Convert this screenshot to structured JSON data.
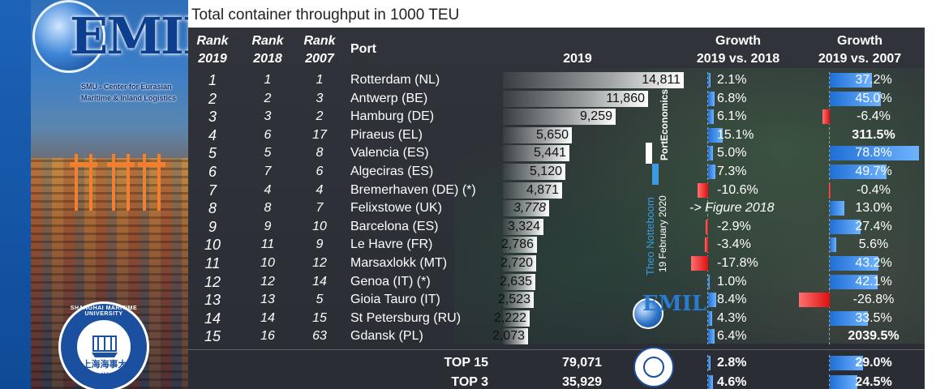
{
  "title": "Total container throughput in 1000 TEU",
  "logo": {
    "emil_text": "EMIL",
    "subtitle_lines": [
      "SMU - Center for Eurasian",
      "Maritime & Inland Logistics"
    ]
  },
  "smu": {
    "ring_text": "SHANGHAI MARITIME UNIVERSITY",
    "chinese_name": "上海海事大学"
  },
  "headers": {
    "rank2019": [
      "Rank",
      "2019"
    ],
    "rank2018": [
      "Rank",
      "2018"
    ],
    "rank2007": [
      "Rank",
      "2007"
    ],
    "port": "Port",
    "y2019": "2019",
    "growth18": [
      "Growth",
      "2019 vs. 2018"
    ],
    "growth07": [
      "Growth",
      "2019 vs. 2007"
    ]
  },
  "watermark": {
    "author": "Theo Notteboom",
    "date": "19 February 2020",
    "brand_a": "Port",
    "brand_b": "Economics"
  },
  "figure_note": "-> Figure 2018",
  "chart_data": {
    "type": "table",
    "title": "Total container throughput in 1000 TEU",
    "unit": "1000 TEU",
    "rows": [
      {
        "rank2019": "1",
        "rank2018": "1",
        "rank2007": "1",
        "port": "Rotterdam (NL)",
        "teu2019": 14811,
        "teu_label": "14,811",
        "g18": 2.1,
        "g18_label": "2.1%",
        "g07": 37.2,
        "g07_label": "37.2%"
      },
      {
        "rank2019": "2",
        "rank2018": "2",
        "rank2007": "3",
        "port": "Antwerp (BE)",
        "teu2019": 11860,
        "teu_label": "11,860",
        "g18": 6.8,
        "g18_label": "6.8%",
        "g07": 45.0,
        "g07_label": "45.0%"
      },
      {
        "rank2019": "3",
        "rank2018": "3",
        "rank2007": "2",
        "port": "Hamburg (DE)",
        "teu2019": 9259,
        "teu_label": "9,259",
        "g18": 6.1,
        "g18_label": "6.1%",
        "g07": -6.4,
        "g07_label": "-6.4%"
      },
      {
        "rank2019": "4",
        "rank2018": "6",
        "rank2007": "17",
        "port": "Piraeus (EL)",
        "teu2019": 5650,
        "teu_label": "5,650",
        "g18": 15.1,
        "g18_label": "15.1%",
        "g07": 311.5,
        "g07_label": "311.5%",
        "g07_bold": true
      },
      {
        "rank2019": "5",
        "rank2018": "5",
        "rank2007": "8",
        "port": "Valencia (ES)",
        "teu2019": 5441,
        "teu_label": "5,441",
        "g18": 5.0,
        "g18_label": "5.0%",
        "g07": 78.8,
        "g07_label": "78.8%"
      },
      {
        "rank2019": "6",
        "rank2018": "7",
        "rank2007": "6",
        "port": "Algeciras (ES)",
        "teu2019": 5120,
        "teu_label": "5,120",
        "g18": 7.3,
        "g18_label": "7.3%",
        "g07": 49.7,
        "g07_label": "49.7%"
      },
      {
        "rank2019": "7",
        "rank2018": "4",
        "rank2007": "4",
        "port": "Bremerhaven (DE) (*)",
        "teu2019": 4871,
        "teu_label": "4,871",
        "g18": -10.6,
        "g18_label": "-10.6%",
        "g07": -0.4,
        "g07_label": "-0.4%"
      },
      {
        "rank2019": "8",
        "rank2018": "8",
        "rank2007": "7",
        "port": "Felixstowe (UK)",
        "teu2019": 3778,
        "teu_label": "3,778",
        "g18": null,
        "g18_label": "",
        "g07": 13.0,
        "g07_label": "13.0%",
        "teu_italic": true
      },
      {
        "rank2019": "9",
        "rank2018": "9",
        "rank2007": "10",
        "port": "Barcelona (ES)",
        "teu2019": 3324,
        "teu_label": "3,324",
        "g18": -2.9,
        "g18_label": "-2.9%",
        "g07": 27.4,
        "g07_label": "27.4%"
      },
      {
        "rank2019": "10",
        "rank2018": "11",
        "rank2007": "9",
        "port": "Le Havre (FR)",
        "teu2019": 2786,
        "teu_label": "2,786",
        "g18": -3.4,
        "g18_label": "-3.4%",
        "g07": 5.6,
        "g07_label": "5.6%"
      },
      {
        "rank2019": "11",
        "rank2018": "10",
        "rank2007": "12",
        "port": "Marsaxlokk (MT)",
        "teu2019": 2720,
        "teu_label": "2,720",
        "g18": -17.8,
        "g18_label": "-17.8%",
        "g07": 43.2,
        "g07_label": "43.2%"
      },
      {
        "rank2019": "12",
        "rank2018": "12",
        "rank2007": "14",
        "port": "Genoa (IT) (*)",
        "teu2019": 2635,
        "teu_label": "2,635",
        "g18": 1.0,
        "g18_label": "1.0%",
        "g07": 42.1,
        "g07_label": "42.1%"
      },
      {
        "rank2019": "13",
        "rank2018": "13",
        "rank2007": "5",
        "port": "Gioia Tauro (IT)",
        "teu2019": 2523,
        "teu_label": "2,523",
        "g18": 8.4,
        "g18_label": "8.4%",
        "g07": -26.8,
        "g07_label": "-26.8%"
      },
      {
        "rank2019": "14",
        "rank2018": "14",
        "rank2007": "15",
        "port": "St Petersburg (RU)",
        "teu2019": 2222,
        "teu_label": "2,222",
        "g18": 4.3,
        "g18_label": "4.3%",
        "g07": 33.5,
        "g07_label": "33.5%"
      },
      {
        "rank2019": "15",
        "rank2018": "16",
        "rank2007": "63",
        "port": "Gdansk (PL)",
        "teu2019": 2073,
        "teu_label": "2,073",
        "g18": 6.4,
        "g18_label": "6.4%",
        "g07": 2039.5,
        "g07_label": "2039.5%",
        "g07_bold": true
      }
    ],
    "totals": [
      {
        "label": "TOP 15",
        "teu2019": 79071,
        "teu_label": "79,071",
        "g18": 2.8,
        "g18_label": "2.8%",
        "g07": 29.0,
        "g07_label": "29.0%"
      },
      {
        "label": "TOP 3",
        "teu2019": 35929,
        "teu_label": "35,929",
        "g18": 4.6,
        "g18_label": "4.6%",
        "g07": 24.5,
        "g07_label": "24.5%"
      }
    ],
    "colors": {
      "positive": "#1f6fd6",
      "negative": "#dd1111",
      "bar": "#ffffff"
    }
  }
}
